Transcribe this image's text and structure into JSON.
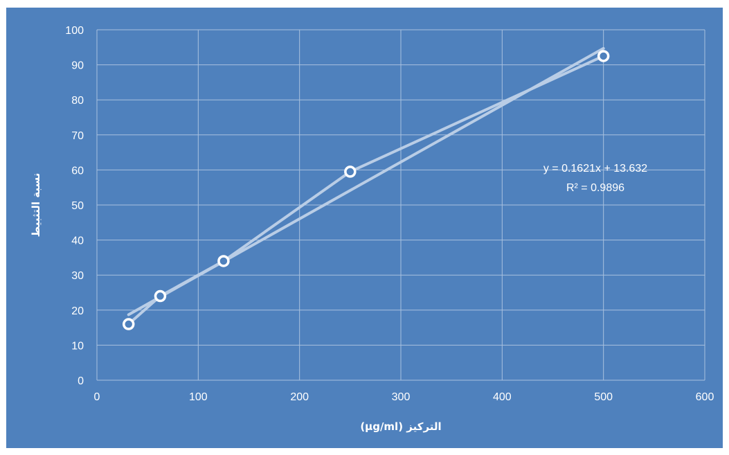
{
  "colors": {
    "background": "#4f81bd",
    "gridline": "#a9c1df",
    "series_line": "#b9cde6",
    "trendline": "#b9cde6",
    "marker_fill": "#4f81bd",
    "marker_stroke": "#ffffff",
    "text": "#ffffff"
  },
  "chart_data": {
    "type": "scatter",
    "title": "",
    "xlabel": "التركيز (µg/ml)",
    "ylabel": "نسبة التثبيط",
    "xlim": [
      0,
      600
    ],
    "ylim": [
      0,
      100
    ],
    "x_ticks": [
      0,
      100,
      200,
      300,
      400,
      500,
      600
    ],
    "y_ticks": [
      0,
      10,
      20,
      30,
      40,
      50,
      60,
      70,
      80,
      90,
      100
    ],
    "grid": true,
    "legend": "none",
    "series": [
      {
        "x": [
          31.25,
          62.5,
          125,
          250,
          500
        ],
        "y": [
          16,
          24,
          34,
          59.5,
          92.5
        ],
        "connected": true,
        "markers": "circle"
      }
    ],
    "trendline": {
      "kind": "linear",
      "slope": 0.1621,
      "intercept": 13.632,
      "x_range": [
        31.25,
        500
      ],
      "equation": "y = 0.1621x + 13.632",
      "r_squared": "R² = 0.9896"
    }
  }
}
